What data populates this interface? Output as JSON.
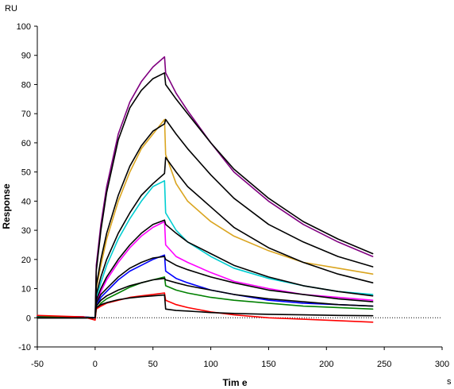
{
  "chart_data": {
    "type": "line",
    "xlabel": "Tim e",
    "ylabel": "Response",
    "x_unit": "s",
    "y_unit": "RU",
    "xlim": [
      -50,
      300
    ],
    "ylim": [
      -10,
      100
    ],
    "x_ticks": [
      -50,
      0,
      50,
      100,
      150,
      200,
      250,
      300
    ],
    "y_ticks": [
      -10,
      0,
      10,
      20,
      30,
      40,
      50,
      60,
      70,
      80,
      90,
      100
    ],
    "grid": false,
    "x": [
      -50,
      -10,
      0,
      1,
      5,
      10,
      20,
      30,
      40,
      50,
      60,
      61,
      70,
      80,
      100,
      120,
      150,
      180,
      210,
      240
    ],
    "series": [
      {
        "color": "#800080",
        "values": [
          0.5,
          0.3,
          0,
          18,
          32,
          45,
          63,
          74,
          81,
          86,
          89.5,
          84,
          77,
          71,
          60,
          50,
          40,
          32,
          26,
          21
        ]
      },
      {
        "color": "#000000",
        "values": [
          0,
          0,
          0,
          16,
          30,
          43,
          61,
          72,
          78,
          82,
          84,
          80,
          75,
          70,
          60,
          51,
          41,
          33,
          27,
          22
        ]
      },
      {
        "color": "#DAA520",
        "values": [
          0.5,
          0.3,
          0,
          10,
          18,
          27,
          40,
          50,
          58,
          63,
          68,
          56,
          46,
          40,
          33,
          28,
          23,
          19,
          17,
          15
        ]
      },
      {
        "color": "#000000",
        "values": [
          0,
          0,
          0,
          11,
          20,
          29,
          42,
          52,
          59,
          64,
          66.5,
          68,
          63,
          58,
          49,
          41,
          32,
          26,
          21,
          17.5
        ]
      },
      {
        "color": "#00CED1",
        "values": [
          0.5,
          0.3,
          0,
          7,
          12,
          18,
          27,
          34,
          40,
          45,
          47,
          36,
          30,
          26,
          21,
          17,
          13.5,
          11,
          9,
          8
        ]
      },
      {
        "color": "#000000",
        "values": [
          0,
          0,
          0,
          8,
          14,
          20,
          29,
          36,
          42,
          46,
          49.5,
          55,
          50,
          45,
          38,
          31,
          24,
          19,
          15,
          12
        ]
      },
      {
        "color": "#FF00FF",
        "values": [
          0.5,
          0.3,
          0,
          5,
          9,
          13,
          19,
          24,
          28,
          31,
          33,
          25,
          21,
          19,
          15.5,
          12.5,
          10,
          8,
          7,
          6
        ]
      },
      {
        "color": "#000000",
        "values": [
          0,
          0,
          0,
          6,
          10,
          14,
          20,
          25,
          29,
          32,
          33.5,
          32,
          29,
          26,
          22,
          18,
          14,
          11,
          9,
          7.5
        ]
      },
      {
        "color": "#0000FF",
        "values": [
          0.5,
          0.3,
          0,
          4,
          7,
          9,
          13,
          16,
          18,
          20,
          21.5,
          16,
          13.5,
          12,
          9.5,
          8,
          6,
          5,
          4.5,
          4
        ]
      },
      {
        "color": "#000000",
        "values": [
          0,
          0,
          0,
          5,
          8,
          10,
          14,
          17,
          19,
          20.5,
          21,
          20,
          18,
          16.5,
          14,
          12,
          9.5,
          8,
          6.5,
          5.5
        ]
      },
      {
        "color": "#008000",
        "values": [
          0.3,
          0.2,
          0,
          3,
          5,
          6.5,
          8.5,
          10.5,
          12,
          13,
          14,
          11,
          9.5,
          8.5,
          7,
          6,
          5,
          4,
          3.5,
          3
        ]
      },
      {
        "color": "#000000",
        "values": [
          0,
          0,
          0,
          4,
          6,
          7.5,
          9.5,
          11,
          12,
          13,
          13.5,
          13,
          12,
          11,
          9.5,
          8,
          6.5,
          5.5,
          4.5,
          4
        ]
      },
      {
        "color": "#FF0000",
        "values": [
          0.8,
          0.3,
          -0.8,
          3,
          4,
          5,
          6,
          7,
          7.5,
          8,
          8.5,
          6,
          4.5,
          3.5,
          2,
          1,
          0,
          -0.5,
          -1,
          -1.5
        ]
      },
      {
        "color": "#000000",
        "values": [
          0,
          0,
          0,
          3.5,
          4.5,
          5.2,
          6.2,
          6.8,
          7.2,
          7.5,
          7.8,
          3,
          2.5,
          2.3,
          1.8,
          1.5,
          1.2,
          1,
          0.8,
          0.7
        ]
      }
    ]
  }
}
